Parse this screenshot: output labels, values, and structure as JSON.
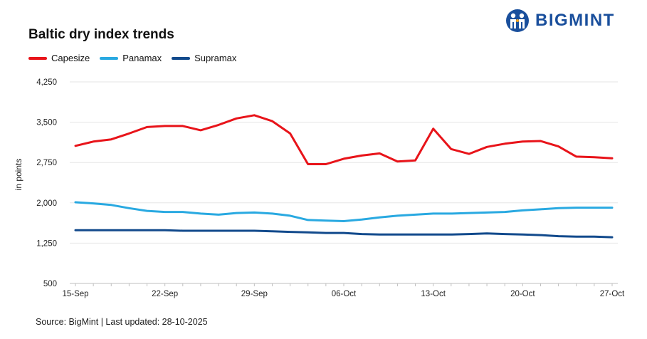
{
  "header": {
    "title": "Baltic dry index trends",
    "brand": "BIGMINT"
  },
  "footer": {
    "source": "Source: BigMint | Last updated: 28-10-2025"
  },
  "colors": {
    "capesize": "#e8141a",
    "panamax": "#29a9e1",
    "supramax": "#124a8c",
    "grid": "#e6e6e6",
    "brand": "#1a4f9c"
  },
  "chart_data": {
    "type": "line",
    "title": "Baltic dry index trends",
    "xlabel": "",
    "ylabel": "in points",
    "ylim": [
      500,
      4250
    ],
    "yticks": [
      "4,250",
      "3,500",
      "2,750",
      "2,000",
      "1,250",
      "500"
    ],
    "ytick_values": [
      4250,
      3500,
      2750,
      2000,
      1250,
      500
    ],
    "x_axis_labels": [
      "15-Sep",
      "22-Sep",
      "29-Sep",
      "06-Oct",
      "13-Oct",
      "20-Oct",
      "27-Oct"
    ],
    "x_axis_label_index": [
      0,
      5,
      10,
      15,
      20,
      25,
      30
    ],
    "grid": true,
    "legend_position": "top-left",
    "x": [
      "15-Sep",
      "16-Sep",
      "17-Sep",
      "18-Sep",
      "19-Sep",
      "22-Sep",
      "23-Sep",
      "24-Sep",
      "25-Sep",
      "26-Sep",
      "29-Sep",
      "30-Sep",
      "01-Oct",
      "02-Oct",
      "03-Oct",
      "06-Oct",
      "07-Oct",
      "08-Oct",
      "09-Oct",
      "10-Oct",
      "13-Oct",
      "14-Oct",
      "15-Oct",
      "16-Oct",
      "17-Oct",
      "20-Oct",
      "21-Oct",
      "22-Oct",
      "23-Oct",
      "24-Oct",
      "27-Oct"
    ],
    "series": [
      {
        "name": "Capesize",
        "color": "#e8141a",
        "values": [
          3060,
          3140,
          3180,
          3290,
          3410,
          3430,
          3430,
          3350,
          3450,
          3570,
          3630,
          3520,
          3290,
          2720,
          2720,
          2820,
          2880,
          2920,
          2770,
          2790,
          3380,
          3000,
          2910,
          3040,
          3100,
          3140,
          3150,
          3050,
          2860,
          2850,
          2830
        ]
      },
      {
        "name": "Panamax",
        "color": "#29a9e1",
        "values": [
          2010,
          1990,
          1960,
          1900,
          1850,
          1830,
          1830,
          1800,
          1780,
          1810,
          1820,
          1800,
          1760,
          1680,
          1670,
          1660,
          1690,
          1730,
          1760,
          1780,
          1800,
          1800,
          1810,
          1820,
          1830,
          1860,
          1880,
          1900,
          1910,
          1910,
          1910
        ]
      },
      {
        "name": "Supramax",
        "color": "#124a8c",
        "values": [
          1490,
          1490,
          1490,
          1490,
          1490,
          1490,
          1480,
          1480,
          1480,
          1480,
          1480,
          1470,
          1460,
          1450,
          1440,
          1440,
          1420,
          1410,
          1410,
          1410,
          1410,
          1410,
          1420,
          1430,
          1420,
          1410,
          1400,
          1380,
          1370,
          1370,
          1360
        ]
      }
    ]
  }
}
